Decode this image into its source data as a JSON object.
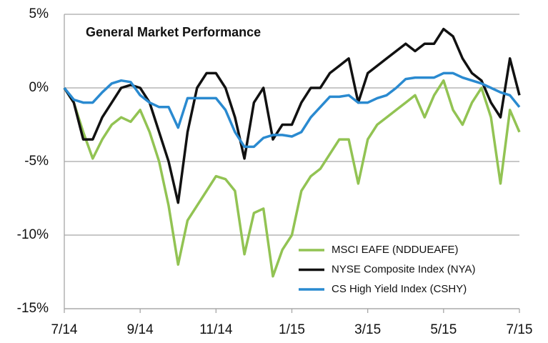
{
  "chart_data": {
    "type": "line",
    "title": "General Market Performance",
    "categories": [
      "7/14",
      null,
      null,
      null,
      null,
      null,
      null,
      null,
      "9/14",
      null,
      null,
      null,
      null,
      null,
      null,
      null,
      "11/14",
      null,
      null,
      null,
      null,
      null,
      null,
      null,
      "1/15",
      null,
      null,
      null,
      null,
      null,
      null,
      null,
      "3/15",
      null,
      null,
      null,
      null,
      null,
      null,
      null,
      "5/15",
      null,
      null,
      null,
      null,
      null,
      null,
      null,
      "7/15"
    ],
    "series": [
      {
        "name": "MSCI EAFE (NDDUEAFE)",
        "color": "#92c353",
        "values": [
          0,
          -1,
          -3,
          -4.8,
          -3.5,
          -2.5,
          -2,
          -2.3,
          -1.5,
          -3,
          -5,
          -8,
          -12,
          -9,
          -8,
          -7,
          -6,
          -6.2,
          -7,
          -11.3,
          -8.5,
          -8.2,
          -12.8,
          -11,
          -10,
          -7,
          -6,
          -5.5,
          -4.5,
          -3.5,
          -3.5,
          -6.5,
          -3.5,
          -2.5,
          -2,
          -1.5,
          -1,
          -0.5,
          -2,
          -0.5,
          0.5,
          -1.5,
          -2.5,
          -1,
          0,
          -2,
          -6.5,
          -1.5,
          -3
        ]
      },
      {
        "name": "NYSE Composite Index (NYA)",
        "color": "#111111",
        "values": [
          0,
          -1,
          -3.5,
          -3.5,
          -2,
          -1,
          0,
          0.2,
          0,
          -1,
          -3,
          -5,
          -7.8,
          -3,
          0,
          1,
          1,
          0,
          -2,
          -4.8,
          -1,
          0,
          -3.5,
          -2.5,
          -2.5,
          -1,
          0,
          0,
          1,
          1.5,
          2,
          -1,
          1,
          1.5,
          2,
          2.5,
          3,
          2.5,
          3,
          3,
          4,
          3.5,
          2,
          1,
          0.5,
          -1,
          -2,
          2,
          -0.5
        ]
      },
      {
        "name": "CS High Yield Index (CSHY)",
        "color": "#2a8ad0",
        "values": [
          0,
          -0.8,
          -1,
          -1,
          -0.3,
          0.3,
          0.5,
          0.4,
          -0.5,
          -1,
          -1.3,
          -1.3,
          -2.7,
          -0.7,
          -0.7,
          -0.7,
          -0.7,
          -1.5,
          -3,
          -4,
          -4,
          -3.4,
          -3.2,
          -3.2,
          -3.3,
          -3,
          -2,
          -1.3,
          -0.6,
          -0.6,
          -0.5,
          -1,
          -1,
          -0.7,
          -0.5,
          0,
          0.6,
          0.7,
          0.7,
          0.7,
          1,
          1,
          0.7,
          0.5,
          0.3,
          0,
          -0.3,
          -0.5,
          -1.3
        ]
      }
    ],
    "ylim": [
      -15,
      5
    ],
    "yticks": [
      {
        "value": -15,
        "label": "-15%"
      },
      {
        "value": -10,
        "label": "-10%"
      },
      {
        "value": -5,
        "label": "-5%"
      },
      {
        "value": 0,
        "label": "0%"
      },
      {
        "value": 5,
        "label": "5%"
      }
    ],
    "grid": true,
    "legend": "lower right"
  }
}
